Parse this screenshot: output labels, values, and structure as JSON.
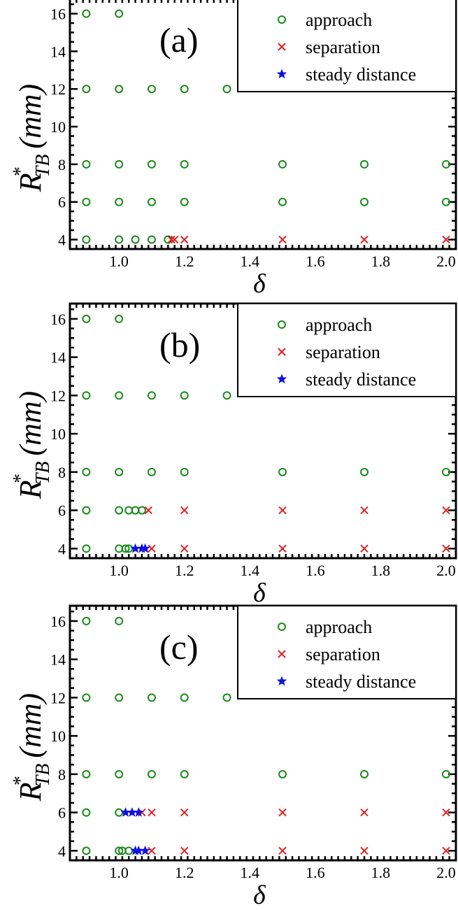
{
  "chart_data": [
    {
      "type": "scatter",
      "panel_label": "(a)",
      "xlabel": "δ",
      "ylabel": "(mm)",
      "ylabel_symbol": "R",
      "ylabel_superscript": "*",
      "ylabel_subscript": "TB",
      "xlim": [
        0.85,
        2.03
      ],
      "ylim": [
        3.5,
        16.8
      ],
      "xticks": [
        "1.0",
        "1.2",
        "1.4",
        "1.6",
        "1.8",
        "2.0"
      ],
      "yticks": [
        "4",
        "6",
        "8",
        "10",
        "12",
        "14",
        "16"
      ],
      "legend_position": "top-right",
      "series": [
        {
          "name": "approach",
          "marker": "circle",
          "color": "#1a8a1a",
          "points": [
            [
              0.9,
              16
            ],
            [
              1.0,
              16
            ],
            [
              0.9,
              12
            ],
            [
              1.0,
              12
            ],
            [
              1.1,
              12
            ],
            [
              1.2,
              12
            ],
            [
              1.33,
              12
            ],
            [
              0.9,
              8
            ],
            [
              1.0,
              8
            ],
            [
              1.1,
              8
            ],
            [
              1.2,
              8
            ],
            [
              1.5,
              8
            ],
            [
              1.75,
              8
            ],
            [
              2.0,
              8
            ],
            [
              0.9,
              6
            ],
            [
              1.0,
              6
            ],
            [
              1.1,
              6
            ],
            [
              1.2,
              6
            ],
            [
              1.5,
              6
            ],
            [
              1.75,
              6
            ],
            [
              2.0,
              6
            ],
            [
              0.9,
              4
            ],
            [
              1.0,
              4
            ],
            [
              1.05,
              4
            ],
            [
              1.1,
              4
            ],
            [
              1.15,
              4
            ]
          ]
        },
        {
          "name": "separation",
          "marker": "x",
          "color": "#e02020",
          "points": [
            [
              1.16,
              4
            ],
            [
              1.17,
              4
            ],
            [
              1.2,
              4
            ],
            [
              1.5,
              4
            ],
            [
              1.75,
              4
            ],
            [
              2.0,
              4
            ]
          ]
        },
        {
          "name": "steady distance",
          "marker": "star",
          "color": "#1010e0",
          "points": []
        }
      ]
    },
    {
      "type": "scatter",
      "panel_label": "(b)",
      "xlabel": "δ",
      "ylabel": "(mm)",
      "ylabel_symbol": "R",
      "ylabel_superscript": "*",
      "ylabel_subscript": "TB",
      "xlim": [
        0.85,
        2.03
      ],
      "ylim": [
        3.5,
        16.8
      ],
      "xticks": [
        "1.0",
        "1.2",
        "1.4",
        "1.6",
        "1.8",
        "2.0"
      ],
      "yticks": [
        "4",
        "6",
        "8",
        "10",
        "12",
        "14",
        "16"
      ],
      "legend_position": "top-right",
      "series": [
        {
          "name": "approach",
          "marker": "circle",
          "color": "#1a8a1a",
          "points": [
            [
              0.9,
              16
            ],
            [
              1.0,
              16
            ],
            [
              0.9,
              12
            ],
            [
              1.0,
              12
            ],
            [
              1.1,
              12
            ],
            [
              1.2,
              12
            ],
            [
              1.33,
              12
            ],
            [
              0.9,
              8
            ],
            [
              1.0,
              8
            ],
            [
              1.1,
              8
            ],
            [
              1.2,
              8
            ],
            [
              1.5,
              8
            ],
            [
              1.75,
              8
            ],
            [
              2.0,
              8
            ],
            [
              0.9,
              6
            ],
            [
              1.0,
              6
            ],
            [
              1.03,
              6
            ],
            [
              1.05,
              6
            ],
            [
              1.07,
              6
            ],
            [
              0.9,
              4
            ],
            [
              1.0,
              4
            ],
            [
              1.02,
              4
            ],
            [
              1.03,
              4
            ]
          ]
        },
        {
          "name": "separation",
          "marker": "x",
          "color": "#e02020",
          "points": [
            [
              1.09,
              6
            ],
            [
              1.2,
              6
            ],
            [
              1.5,
              6
            ],
            [
              1.75,
              6
            ],
            [
              2.0,
              6
            ],
            [
              1.1,
              4
            ],
            [
              1.2,
              4
            ],
            [
              1.5,
              4
            ],
            [
              1.75,
              4
            ],
            [
              2.0,
              4
            ]
          ]
        },
        {
          "name": "steady distance",
          "marker": "star",
          "color": "#1010e0",
          "points": [
            [
              1.05,
              4
            ],
            [
              1.07,
              4
            ],
            [
              1.08,
              4
            ]
          ]
        }
      ]
    },
    {
      "type": "scatter",
      "panel_label": "(c)",
      "xlabel": "δ",
      "ylabel": "(mm)",
      "ylabel_symbol": "R",
      "ylabel_superscript": "*",
      "ylabel_subscript": "TB",
      "xlim": [
        0.85,
        2.03
      ],
      "ylim": [
        3.5,
        16.8
      ],
      "xticks": [
        "1.0",
        "1.2",
        "1.4",
        "1.6",
        "1.8",
        "2.0"
      ],
      "yticks": [
        "4",
        "6",
        "8",
        "10",
        "12",
        "14",
        "16"
      ],
      "legend_position": "top-right",
      "series": [
        {
          "name": "approach",
          "marker": "circle",
          "color": "#1a8a1a",
          "points": [
            [
              0.9,
              16
            ],
            [
              1.0,
              16
            ],
            [
              0.9,
              12
            ],
            [
              1.0,
              12
            ],
            [
              1.1,
              12
            ],
            [
              1.2,
              12
            ],
            [
              1.33,
              12
            ],
            [
              0.9,
              8
            ],
            [
              1.0,
              8
            ],
            [
              1.1,
              8
            ],
            [
              1.2,
              8
            ],
            [
              1.5,
              8
            ],
            [
              1.75,
              8
            ],
            [
              2.0,
              8
            ],
            [
              0.9,
              6
            ],
            [
              1.0,
              6
            ],
            [
              0.9,
              4
            ],
            [
              1.0,
              4
            ],
            [
              1.01,
              4
            ],
            [
              1.03,
              4
            ]
          ]
        },
        {
          "name": "separation",
          "marker": "x",
          "color": "#e02020",
          "points": [
            [
              1.07,
              6
            ],
            [
              1.1,
              6
            ],
            [
              1.2,
              6
            ],
            [
              1.5,
              6
            ],
            [
              1.75,
              6
            ],
            [
              2.0,
              6
            ],
            [
              1.1,
              4
            ],
            [
              1.2,
              4
            ],
            [
              1.5,
              4
            ],
            [
              1.75,
              4
            ],
            [
              2.0,
              4
            ]
          ]
        },
        {
          "name": "steady distance",
          "marker": "star",
          "color": "#1010e0",
          "points": [
            [
              1.02,
              6
            ],
            [
              1.04,
              6
            ],
            [
              1.06,
              6
            ],
            [
              1.05,
              4
            ],
            [
              1.06,
              4
            ],
            [
              1.08,
              4
            ]
          ]
        }
      ]
    }
  ]
}
